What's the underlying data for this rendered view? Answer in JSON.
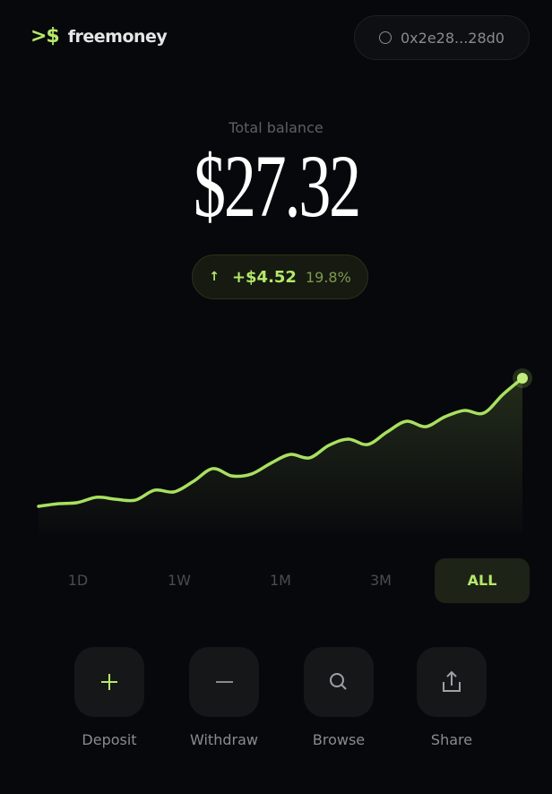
{
  "header": {
    "logo_mark": ">$",
    "app_name": "freemoney",
    "wallet_address": "0x2e28...28d0"
  },
  "balance": {
    "label": "Total balance",
    "value": "$27.32",
    "change_amount": "+$4.52",
    "change_percent": "19.8%",
    "change_icon": "arrow-up-icon"
  },
  "colors": {
    "accent": "#b5e86a",
    "background": "#07080c"
  },
  "chart_data": {
    "type": "area",
    "grid": false,
    "values": [
      22.8,
      22.89,
      22.93,
      23.12,
      23.05,
      23.02,
      23.37,
      23.31,
      23.68,
      24.13,
      23.87,
      23.94,
      24.32,
      24.63,
      24.51,
      24.95,
      25.17,
      24.98,
      25.42,
      25.8,
      25.61,
      25.96,
      26.18,
      26.09,
      26.75,
      27.32
    ]
  },
  "time_ranges": [
    {
      "label": "1D"
    },
    {
      "label": "1W"
    },
    {
      "label": "1M"
    },
    {
      "label": "3M"
    },
    {
      "label": "ALL",
      "active": true
    }
  ],
  "actions": [
    {
      "label": "Deposit",
      "icon": "plus-icon"
    },
    {
      "label": "Withdraw",
      "icon": "minus-icon"
    },
    {
      "label": "Browse",
      "icon": "search-icon"
    },
    {
      "label": "Share",
      "icon": "share-icon"
    }
  ]
}
